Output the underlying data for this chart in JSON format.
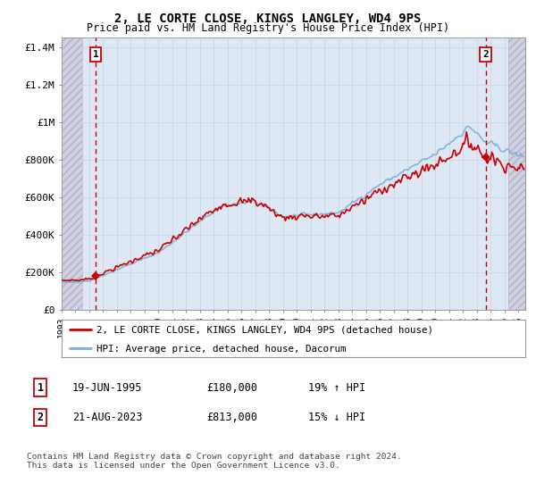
{
  "title": "2, LE CORTE CLOSE, KINGS LANGLEY, WD4 9PS",
  "subtitle": "Price paid vs. HM Land Registry's House Price Index (HPI)",
  "ylabel_ticks": [
    "£0",
    "£200K",
    "£400K",
    "£600K",
    "£800K",
    "£1M",
    "£1.2M",
    "£1.4M"
  ],
  "ytick_values": [
    0,
    200000,
    400000,
    600000,
    800000,
    1000000,
    1200000,
    1400000
  ],
  "ylim": [
    0,
    1450000
  ],
  "xlim_start": 1993.0,
  "xlim_end": 2026.5,
  "hpi_color": "#7bafd4",
  "price_color": "#cc0000",
  "sale1_date": "19-JUN-1995",
  "sale1_price": 180000,
  "sale1_x": 1995.46,
  "sale1_label": "1",
  "sale1_hpi_pct": "19% ↑ HPI",
  "sale2_date": "21-AUG-2023",
  "sale2_price": 813000,
  "sale2_x": 2023.63,
  "sale2_label": "2",
  "sale2_hpi_pct": "15% ↓ HPI",
  "legend_line1": "2, LE CORTE CLOSE, KINGS LANGLEY, WD4 9PS (detached house)",
  "legend_line2": "HPI: Average price, detached house, Dacorum",
  "footnote": "Contains HM Land Registry data © Crown copyright and database right 2024.\nThis data is licensed under the Open Government Licence v3.0.",
  "grid_color": "#c8d8e8",
  "plot_bg": "#dde8f4",
  "hatch_bg": "#d0d0e0"
}
